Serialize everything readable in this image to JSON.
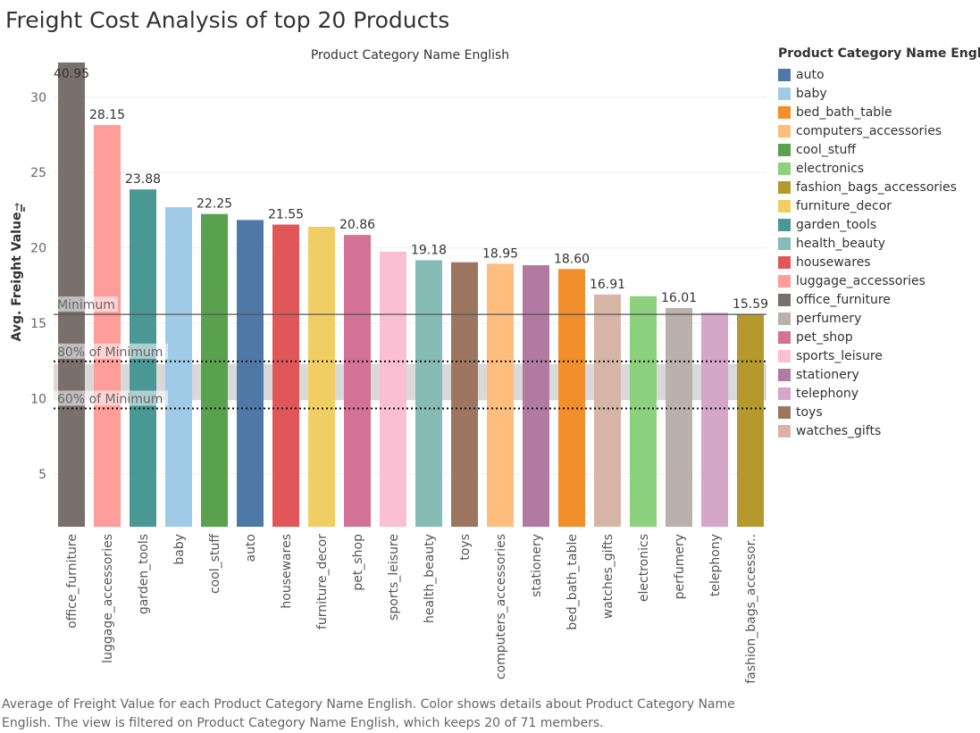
{
  "title": "Freight Cost Analysis of top 20 Products",
  "caption": "Average of Freight Value for each Product Category Name English.  Color shows details about Product Category Name English. The view is filtered on Product Category Name English, which keeps 20 of 71 members.",
  "legend": {
    "title": "Product Category Name English",
    "items": [
      {
        "label": "auto",
        "color": "#4e79a7"
      },
      {
        "label": "baby",
        "color": "#a0cbe8"
      },
      {
        "label": "bed_bath_table",
        "color": "#f28e2b"
      },
      {
        "label": "computers_accessories",
        "color": "#ffbe7d"
      },
      {
        "label": "cool_stuff",
        "color": "#59a14f"
      },
      {
        "label": "electronics",
        "color": "#8cd17d"
      },
      {
        "label": "fashion_bags_accessories",
        "color": "#b6992d"
      },
      {
        "label": "furniture_decor",
        "color": "#f1ce63"
      },
      {
        "label": "garden_tools",
        "color": "#499894"
      },
      {
        "label": "health_beauty",
        "color": "#86bcb6"
      },
      {
        "label": "housewares",
        "color": "#e15759"
      },
      {
        "label": "luggage_accessories",
        "color": "#ff9d9a"
      },
      {
        "label": "office_furniture",
        "color": "#79706e"
      },
      {
        "label": "perfumery",
        "color": "#bab0ac"
      },
      {
        "label": "pet_shop",
        "color": "#d37295"
      },
      {
        "label": "sports_leisure",
        "color": "#fabfd2"
      },
      {
        "label": "stationery",
        "color": "#b07aa1"
      },
      {
        "label": "telephony",
        "color": "#d4a6c8"
      },
      {
        "label": "toys",
        "color": "#9d7660"
      },
      {
        "label": "watches_gifts",
        "color": "#d7b5a6"
      }
    ]
  },
  "chart_data": {
    "type": "bar",
    "column_header": "Product Category Name English",
    "ylabel": "Avg. Freight Value",
    "ylim": [
      1.5,
      32.3
    ],
    "yticks": [
      5,
      10,
      15,
      20,
      25,
      30
    ],
    "grid": true,
    "categories": [
      "office_furniture",
      "luggage_accessories",
      "garden_tools",
      "baby",
      "cool_stuff",
      "auto",
      "housewares",
      "furniture_decor",
      "pet_shop",
      "sports_leisure",
      "health_beauty",
      "toys",
      "computers_accessories",
      "stationery",
      "bed_bath_table",
      "watches_gifts",
      "electronics",
      "perfumery",
      "telephony",
      "fashion_bags_accessories"
    ],
    "tick_labels": [
      "office_furniture",
      "luggage_accessories",
      "garden_tools",
      "baby",
      "cool_stuff",
      "auto",
      "housewares",
      "furniture_decor",
      "pet_shop",
      "sports_leisure",
      "health_beauty",
      "toys",
      "computers_accessories",
      "stationery",
      "bed_bath_table",
      "watches_gifts",
      "electronics",
      "perfumery",
      "telephony",
      "fashion_bags_accessor.."
    ],
    "values": [
      40.95,
      28.15,
      23.88,
      22.7,
      22.25,
      21.85,
      21.55,
      21.4,
      20.86,
      19.75,
      19.18,
      19.05,
      18.95,
      18.85,
      18.6,
      16.91,
      16.8,
      16.01,
      15.7,
      15.59
    ],
    "data_labels": [
      "40.95",
      "28.15",
      "23.88",
      "",
      "22.25",
      "",
      "21.55",
      "",
      "20.86",
      "",
      "19.18",
      "",
      "18.95",
      "",
      "18.60",
      "16.91",
      "",
      "16.01",
      "",
      "15.59"
    ],
    "reference_lines": [
      {
        "label": "Minimum",
        "value": 15.59,
        "style": "solid"
      },
      {
        "label": "80% of Minimum",
        "value": 12.47,
        "style": "dotted"
      },
      {
        "label": "60% of Minimum",
        "value": 9.35,
        "style": "dotted"
      }
    ],
    "reference_band": [
      9.9,
      12.3
    ]
  }
}
